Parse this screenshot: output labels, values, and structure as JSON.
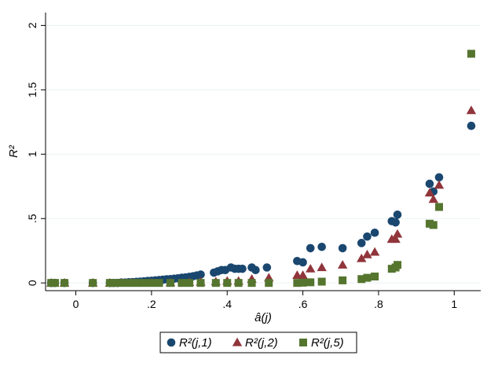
{
  "chart_data": {
    "type": "scatter",
    "xlabel": "â(j)",
    "ylabel": "R²",
    "xlim": [
      -0.08,
      1.07
    ],
    "ylim": [
      -0.06,
      2.1
    ],
    "x_ticks": [
      0,
      0.2,
      0.4,
      0.6,
      0.8,
      1
    ],
    "x_tick_labels": [
      "0",
      ".2",
      ".4",
      ".6",
      ".8",
      "1"
    ],
    "y_ticks": [
      0,
      0.5,
      1,
      1.5,
      2
    ],
    "y_tick_labels": [
      "0",
      ".5",
      "1",
      "1.5",
      "2"
    ],
    "grid": "horizontal",
    "legend_position": "bottom",
    "series": [
      {
        "name": "R²(j,1)",
        "marker": "circle",
        "color": "#1a476f",
        "points": [
          [
            -0.065,
            0.0
          ],
          [
            -0.055,
            0.0
          ],
          [
            -0.03,
            0.0
          ],
          [
            0.045,
            0.0
          ],
          [
            0.09,
            0.0
          ],
          [
            0.1,
            0.0
          ],
          [
            0.11,
            0.0
          ],
          [
            0.12,
            0.003
          ],
          [
            0.13,
            0.003
          ],
          [
            0.14,
            0.005
          ],
          [
            0.15,
            0.006
          ],
          [
            0.16,
            0.008
          ],
          [
            0.17,
            0.01
          ],
          [
            0.18,
            0.012
          ],
          [
            0.19,
            0.015
          ],
          [
            0.2,
            0.017
          ],
          [
            0.21,
            0.02
          ],
          [
            0.22,
            0.022
          ],
          [
            0.23,
            0.025
          ],
          [
            0.24,
            0.028
          ],
          [
            0.25,
            0.03
          ],
          [
            0.26,
            0.033
          ],
          [
            0.27,
            0.036
          ],
          [
            0.28,
            0.04
          ],
          [
            0.29,
            0.043
          ],
          [
            0.3,
            0.047
          ],
          [
            0.31,
            0.052
          ],
          [
            0.32,
            0.058
          ],
          [
            0.33,
            0.065
          ],
          [
            0.365,
            0.08
          ],
          [
            0.375,
            0.09
          ],
          [
            0.385,
            0.1
          ],
          [
            0.395,
            0.1
          ],
          [
            0.41,
            0.12
          ],
          [
            0.42,
            0.11
          ],
          [
            0.43,
            0.11
          ],
          [
            0.44,
            0.11
          ],
          [
            0.465,
            0.12
          ],
          [
            0.475,
            0.1
          ],
          [
            0.505,
            0.12
          ],
          [
            0.585,
            0.17
          ],
          [
            0.6,
            0.16
          ],
          [
            0.62,
            0.27
          ],
          [
            0.65,
            0.28
          ],
          [
            0.705,
            0.27
          ],
          [
            0.755,
            0.31
          ],
          [
            0.77,
            0.36
          ],
          [
            0.79,
            0.39
          ],
          [
            0.835,
            0.48
          ],
          [
            0.845,
            0.47
          ],
          [
            0.85,
            0.53
          ],
          [
            0.935,
            0.77
          ],
          [
            0.945,
            0.71
          ],
          [
            0.96,
            0.82
          ],
          [
            1.045,
            1.22
          ]
        ]
      },
      {
        "name": "R²(j,2)",
        "marker": "triangle",
        "color": "#90353b",
        "points": [
          [
            -0.065,
            0.0
          ],
          [
            -0.03,
            0.0
          ],
          [
            0.045,
            0.0
          ],
          [
            0.09,
            0.0
          ],
          [
            0.12,
            0.0
          ],
          [
            0.15,
            0.0
          ],
          [
            0.2,
            0.0
          ],
          [
            0.25,
            0.002
          ],
          [
            0.3,
            0.005
          ],
          [
            0.33,
            0.008
          ],
          [
            0.37,
            0.01
          ],
          [
            0.4,
            0.015
          ],
          [
            0.43,
            0.015
          ],
          [
            0.465,
            0.03
          ],
          [
            0.51,
            0.04
          ],
          [
            0.585,
            0.06
          ],
          [
            0.6,
            0.06
          ],
          [
            0.62,
            0.11
          ],
          [
            0.65,
            0.12
          ],
          [
            0.705,
            0.14
          ],
          [
            0.755,
            0.19
          ],
          [
            0.77,
            0.22
          ],
          [
            0.79,
            0.24
          ],
          [
            0.835,
            0.34
          ],
          [
            0.845,
            0.34
          ],
          [
            0.85,
            0.38
          ],
          [
            0.935,
            0.7
          ],
          [
            0.945,
            0.65
          ],
          [
            0.96,
            0.76
          ],
          [
            1.045,
            1.34
          ]
        ]
      },
      {
        "name": "R²(j,5)",
        "marker": "square",
        "color": "#55752f",
        "points": [
          [
            -0.065,
            0.0
          ],
          [
            -0.055,
            0.0
          ],
          [
            -0.03,
            0.0
          ],
          [
            0.045,
            0.0
          ],
          [
            0.09,
            0.0
          ],
          [
            0.1,
            0.0
          ],
          [
            0.12,
            0.0
          ],
          [
            0.14,
            0.0
          ],
          [
            0.16,
            0.0
          ],
          [
            0.18,
            0.0
          ],
          [
            0.2,
            0.0
          ],
          [
            0.22,
            0.0
          ],
          [
            0.25,
            0.0
          ],
          [
            0.28,
            0.0
          ],
          [
            0.3,
            0.0
          ],
          [
            0.33,
            0.0
          ],
          [
            0.37,
            0.0
          ],
          [
            0.4,
            0.0
          ],
          [
            0.43,
            0.0
          ],
          [
            0.465,
            0.0
          ],
          [
            0.51,
            0.0
          ],
          [
            0.585,
            0.0
          ],
          [
            0.6,
            0.002
          ],
          [
            0.62,
            0.005
          ],
          [
            0.65,
            0.01
          ],
          [
            0.705,
            0.02
          ],
          [
            0.755,
            0.03
          ],
          [
            0.77,
            0.04
          ],
          [
            0.79,
            0.05
          ],
          [
            0.835,
            0.11
          ],
          [
            0.845,
            0.12
          ],
          [
            0.85,
            0.14
          ],
          [
            0.935,
            0.46
          ],
          [
            0.945,
            0.45
          ],
          [
            0.96,
            0.59
          ],
          [
            1.045,
            1.78
          ]
        ]
      }
    ]
  }
}
